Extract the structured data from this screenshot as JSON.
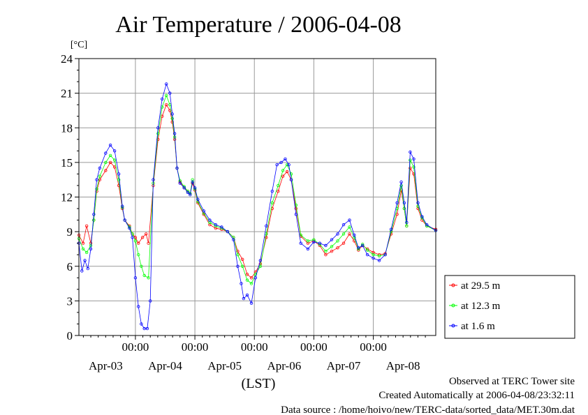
{
  "chart_data": {
    "type": "line",
    "title": "Air Temperature / 2006-04-08",
    "y_unit": "[°C]",
    "xlabel": "(LST)",
    "ylim": [
      0,
      24
    ],
    "y_ticks": [
      0,
      3,
      6,
      9,
      12,
      15,
      18,
      21,
      24
    ],
    "x_time_ticks": [
      "00:00",
      "00:00",
      "00:00",
      "00:00",
      "00:00"
    ],
    "x_date_labels": [
      "Apr-03",
      "Apr-04",
      "Apr-05",
      "Apr-06",
      "Apr-07",
      "Apr-08"
    ],
    "x_range_days_from_apr03_0000": [
      -0.95,
      5.05
    ],
    "grid": true,
    "legend_position": "right",
    "series": [
      {
        "name": "at 29.5 m",
        "color": "#ff0000",
        "points": [
          [
            -0.95,
            8.7
          ],
          [
            -0.88,
            8.0
          ],
          [
            -0.82,
            9.5
          ],
          [
            -0.75,
            8.0
          ],
          [
            -0.7,
            10.0
          ],
          [
            -0.65,
            12.5
          ],
          [
            -0.6,
            13.5
          ],
          [
            -0.5,
            14.3
          ],
          [
            -0.42,
            15.0
          ],
          [
            -0.35,
            14.6
          ],
          [
            -0.28,
            13.0
          ],
          [
            -0.22,
            11.0
          ],
          [
            -0.18,
            10.0
          ],
          [
            -0.1,
            9.5
          ],
          [
            -0.05,
            8.8
          ],
          [
            0.0,
            8.5
          ],
          [
            0.05,
            8.0
          ],
          [
            0.12,
            8.5
          ],
          [
            0.18,
            8.8
          ],
          [
            0.22,
            8.0
          ],
          [
            0.3,
            13.0
          ],
          [
            0.38,
            17.0
          ],
          [
            0.45,
            19.0
          ],
          [
            0.52,
            20.0
          ],
          [
            0.58,
            19.5
          ],
          [
            0.62,
            18.5
          ],
          [
            0.66,
            17.0
          ],
          [
            0.7,
            14.5
          ],
          [
            0.75,
            13.3
          ],
          [
            0.82,
            12.8
          ],
          [
            0.88,
            12.5
          ],
          [
            0.92,
            12.3
          ],
          [
            0.96,
            13.2
          ],
          [
            1.0,
            12.6
          ],
          [
            1.05,
            11.5
          ],
          [
            1.15,
            10.5
          ],
          [
            1.25,
            9.6
          ],
          [
            1.35,
            9.3
          ],
          [
            1.45,
            9.2
          ],
          [
            1.55,
            9.0
          ],
          [
            1.65,
            8.5
          ],
          [
            1.72,
            7.3
          ],
          [
            1.8,
            6.6
          ],
          [
            1.88,
            5.3
          ],
          [
            1.95,
            5.0
          ],
          [
            2.02,
            5.5
          ],
          [
            2.1,
            6.2
          ],
          [
            2.2,
            8.5
          ],
          [
            2.3,
            11.0
          ],
          [
            2.4,
            12.5
          ],
          [
            2.48,
            13.8
          ],
          [
            2.55,
            14.2
          ],
          [
            2.62,
            13.5
          ],
          [
            2.7,
            11.0
          ],
          [
            2.78,
            8.6
          ],
          [
            2.9,
            8.0
          ],
          [
            3.0,
            8.2
          ],
          [
            3.1,
            7.8
          ],
          [
            3.2,
            7.0
          ],
          [
            3.3,
            7.3
          ],
          [
            3.4,
            7.6
          ],
          [
            3.5,
            8.0
          ],
          [
            3.6,
            8.8
          ],
          [
            3.68,
            8.2
          ],
          [
            3.75,
            7.4
          ],
          [
            3.82,
            7.8
          ],
          [
            3.9,
            7.5
          ],
          [
            4.0,
            7.2
          ],
          [
            4.1,
            7.0
          ],
          [
            4.2,
            7.1
          ],
          [
            4.3,
            8.8
          ],
          [
            4.4,
            10.5
          ],
          [
            4.47,
            12.6
          ],
          [
            4.52,
            11.0
          ],
          [
            4.56,
            9.5
          ],
          [
            4.62,
            14.5
          ],
          [
            4.68,
            14.0
          ],
          [
            4.75,
            11.0
          ],
          [
            4.82,
            10.0
          ],
          [
            4.9,
            9.5
          ],
          [
            5.05,
            9.2
          ]
        ]
      },
      {
        "name": "at 12.3 m",
        "color": "#00ff00",
        "points": [
          [
            -0.95,
            8.4
          ],
          [
            -0.88,
            7.5
          ],
          [
            -0.82,
            7.2
          ],
          [
            -0.75,
            7.8
          ],
          [
            -0.7,
            10.0
          ],
          [
            -0.65,
            12.7
          ],
          [
            -0.6,
            13.8
          ],
          [
            -0.5,
            15.0
          ],
          [
            -0.42,
            15.6
          ],
          [
            -0.35,
            15.2
          ],
          [
            -0.28,
            13.5
          ],
          [
            -0.22,
            11.1
          ],
          [
            -0.18,
            10.0
          ],
          [
            -0.1,
            9.4
          ],
          [
            -0.05,
            8.8
          ],
          [
            0.0,
            8.2
          ],
          [
            0.05,
            7.0
          ],
          [
            0.1,
            6.0
          ],
          [
            0.15,
            5.2
          ],
          [
            0.22,
            5.0
          ],
          [
            0.3,
            13.2
          ],
          [
            0.38,
            17.5
          ],
          [
            0.45,
            19.8
          ],
          [
            0.52,
            20.8
          ],
          [
            0.58,
            20.0
          ],
          [
            0.62,
            18.8
          ],
          [
            0.66,
            17.2
          ],
          [
            0.7,
            14.5
          ],
          [
            0.75,
            13.4
          ],
          [
            0.82,
            12.9
          ],
          [
            0.88,
            12.5
          ],
          [
            0.92,
            12.3
          ],
          [
            0.96,
            13.5
          ],
          [
            1.0,
            12.7
          ],
          [
            1.05,
            11.6
          ],
          [
            1.15,
            10.6
          ],
          [
            1.25,
            9.8
          ],
          [
            1.35,
            9.5
          ],
          [
            1.45,
            9.3
          ],
          [
            1.55,
            9.0
          ],
          [
            1.65,
            8.5
          ],
          [
            1.72,
            7.0
          ],
          [
            1.8,
            6.0
          ],
          [
            1.88,
            4.8
          ],
          [
            1.95,
            4.5
          ],
          [
            2.02,
            5.3
          ],
          [
            2.1,
            6.0
          ],
          [
            2.2,
            8.8
          ],
          [
            2.3,
            11.5
          ],
          [
            2.4,
            13.0
          ],
          [
            2.48,
            14.3
          ],
          [
            2.55,
            14.8
          ],
          [
            2.62,
            14.0
          ],
          [
            2.7,
            11.3
          ],
          [
            2.78,
            8.7
          ],
          [
            2.9,
            8.2
          ],
          [
            3.0,
            8.3
          ],
          [
            3.1,
            7.9
          ],
          [
            3.2,
            7.3
          ],
          [
            3.3,
            7.7
          ],
          [
            3.4,
            8.2
          ],
          [
            3.5,
            8.8
          ],
          [
            3.6,
            9.4
          ],
          [
            3.68,
            8.5
          ],
          [
            3.75,
            7.5
          ],
          [
            3.82,
            7.9
          ],
          [
            3.9,
            7.4
          ],
          [
            4.0,
            7.0
          ],
          [
            4.1,
            6.9
          ],
          [
            4.2,
            7.0
          ],
          [
            4.3,
            9.0
          ],
          [
            4.4,
            11.0
          ],
          [
            4.47,
            13.0
          ],
          [
            4.52,
            11.0
          ],
          [
            4.56,
            9.5
          ],
          [
            4.62,
            15.2
          ],
          [
            4.68,
            14.6
          ],
          [
            4.75,
            11.2
          ],
          [
            4.82,
            10.2
          ],
          [
            4.9,
            9.5
          ],
          [
            5.05,
            9.1
          ]
        ]
      },
      {
        "name": "at 1.6 m",
        "color": "#0000ff",
        "points": [
          [
            -0.95,
            8.0
          ],
          [
            -0.9,
            5.6
          ],
          [
            -0.85,
            6.5
          ],
          [
            -0.8,
            5.8
          ],
          [
            -0.75,
            7.5
          ],
          [
            -0.7,
            10.5
          ],
          [
            -0.65,
            13.5
          ],
          [
            -0.6,
            14.5
          ],
          [
            -0.5,
            15.8
          ],
          [
            -0.42,
            16.5
          ],
          [
            -0.35,
            16.0
          ],
          [
            -0.28,
            14.0
          ],
          [
            -0.22,
            11.2
          ],
          [
            -0.18,
            10.0
          ],
          [
            -0.1,
            9.3
          ],
          [
            -0.05,
            8.5
          ],
          [
            0.0,
            5.0
          ],
          [
            0.05,
            2.5
          ],
          [
            0.1,
            1.0
          ],
          [
            0.15,
            0.6
          ],
          [
            0.2,
            0.6
          ],
          [
            0.25,
            3.0
          ],
          [
            0.3,
            13.5
          ],
          [
            0.38,
            18.0
          ],
          [
            0.45,
            20.5
          ],
          [
            0.52,
            21.8
          ],
          [
            0.58,
            21.0
          ],
          [
            0.62,
            19.2
          ],
          [
            0.66,
            17.5
          ],
          [
            0.7,
            14.5
          ],
          [
            0.75,
            13.2
          ],
          [
            0.82,
            12.8
          ],
          [
            0.88,
            12.4
          ],
          [
            0.92,
            12.2
          ],
          [
            0.96,
            13.3
          ],
          [
            1.0,
            12.8
          ],
          [
            1.05,
            11.8
          ],
          [
            1.15,
            10.8
          ],
          [
            1.25,
            10.0
          ],
          [
            1.35,
            9.6
          ],
          [
            1.45,
            9.4
          ],
          [
            1.55,
            9.0
          ],
          [
            1.65,
            8.3
          ],
          [
            1.72,
            6.0
          ],
          [
            1.78,
            4.5
          ],
          [
            1.82,
            3.2
          ],
          [
            1.88,
            3.5
          ],
          [
            1.95,
            2.8
          ],
          [
            2.02,
            5.0
          ],
          [
            2.1,
            6.5
          ],
          [
            2.2,
            9.5
          ],
          [
            2.3,
            12.5
          ],
          [
            2.38,
            14.8
          ],
          [
            2.45,
            15.0
          ],
          [
            2.52,
            15.3
          ],
          [
            2.58,
            14.8
          ],
          [
            2.62,
            13.5
          ],
          [
            2.7,
            10.5
          ],
          [
            2.78,
            8.0
          ],
          [
            2.9,
            7.5
          ],
          [
            3.0,
            8.1
          ],
          [
            3.1,
            8.0
          ],
          [
            3.2,
            7.8
          ],
          [
            3.3,
            8.3
          ],
          [
            3.4,
            8.8
          ],
          [
            3.5,
            9.6
          ],
          [
            3.6,
            10.0
          ],
          [
            3.68,
            8.7
          ],
          [
            3.75,
            7.6
          ],
          [
            3.82,
            7.8
          ],
          [
            3.9,
            7.0
          ],
          [
            4.0,
            6.7
          ],
          [
            4.1,
            6.5
          ],
          [
            4.2,
            7.0
          ],
          [
            4.3,
            9.2
          ],
          [
            4.4,
            11.5
          ],
          [
            4.47,
            13.3
          ],
          [
            4.52,
            11.5
          ],
          [
            4.56,
            9.8
          ],
          [
            4.62,
            15.9
          ],
          [
            4.68,
            15.3
          ],
          [
            4.75,
            11.5
          ],
          [
            4.82,
            10.3
          ],
          [
            4.9,
            9.6
          ],
          [
            5.05,
            9.1
          ]
        ]
      }
    ]
  },
  "footer": {
    "line1": "Observed at TERC Tower site",
    "line2": "Created Automatically at 2006-04-08/23:32:11",
    "line3": "Data source : /home/hoivo/new/TERC-data/sorted_data/MET.30m.dat"
  }
}
